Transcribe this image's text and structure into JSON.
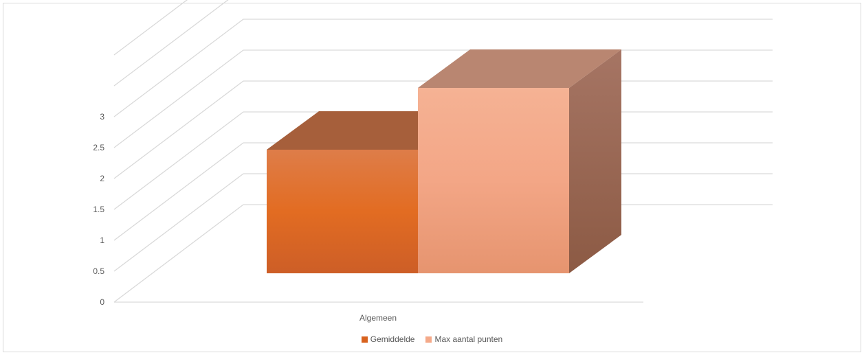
{
  "chart_data": {
    "type": "bar",
    "categories": [
      "Algemeen"
    ],
    "series": [
      {
        "name": "Gemiddelde",
        "values": [
          2.0
        ],
        "color": "#e46d2a"
      },
      {
        "name": "Max aantal punten",
        "values": [
          3.0
        ],
        "color": "#f4a989"
      }
    ],
    "y_ticks": [
      "0",
      "0.5",
      "1",
      "1.5",
      "2",
      "2.5",
      "3"
    ],
    "ylim": [
      0,
      3
    ],
    "grid": true,
    "legend_position": "bottom",
    "3d": true
  }
}
